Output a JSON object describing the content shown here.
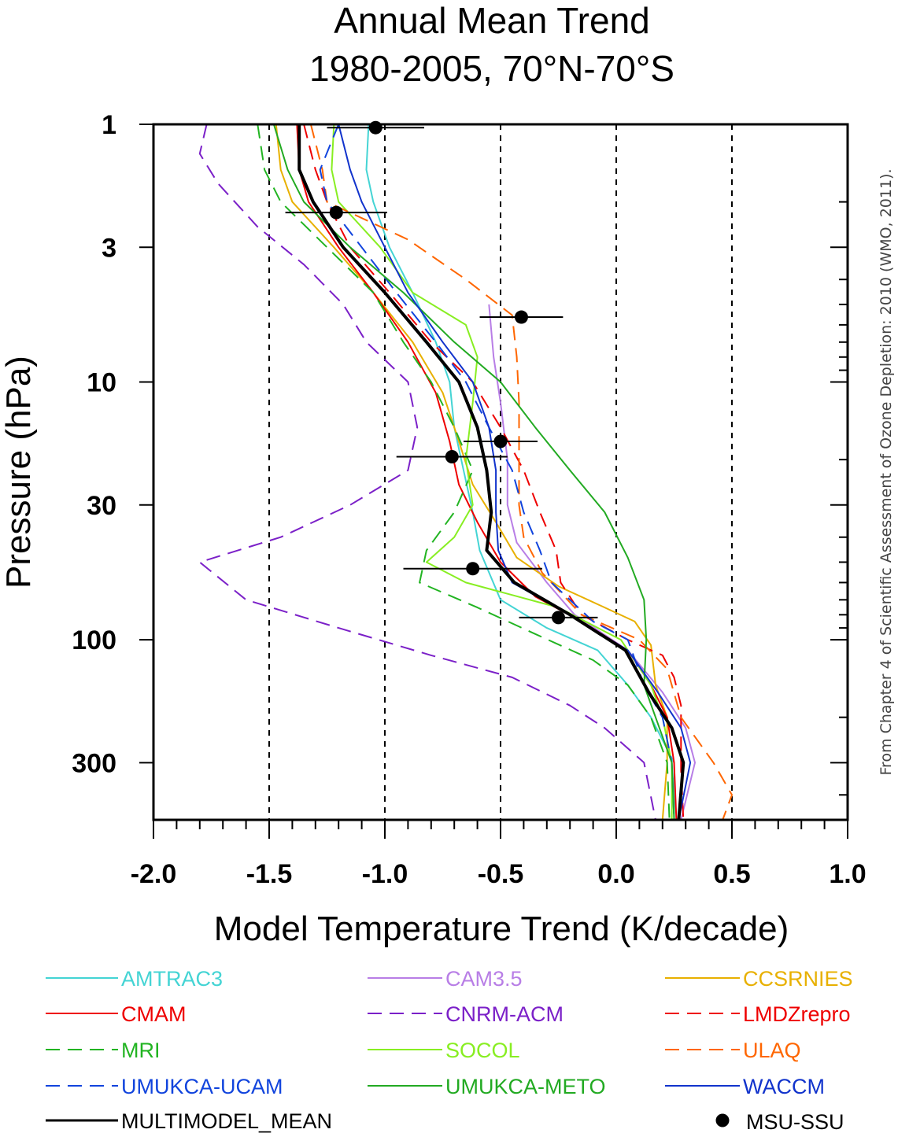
{
  "chart_data": {
    "type": "line",
    "title_lines": [
      "Annual Mean Trend",
      "1980-2005, 70°N-70°S"
    ],
    "xlabel": "Model Temperature Trend (K/decade)",
    "ylabel": "Pressure (hPa)",
    "xlim": [
      -2.0,
      1.0
    ],
    "ylim": [
      1,
      500
    ],
    "y_scale": "log",
    "y_inverted": true,
    "x_ticks": [
      "-2.0",
      "-1.5",
      "-1.0",
      "-0.5",
      "0.0",
      "0.5",
      "1.0"
    ],
    "x_tick_values": [
      -2.0,
      -1.5,
      -1.0,
      -0.5,
      0.0,
      0.5,
      1.0
    ],
    "y_ticks": [
      "1",
      "3",
      "10",
      "30",
      "100",
      "300"
    ],
    "y_tick_values": [
      1,
      3,
      10,
      30,
      100,
      300
    ],
    "vertical_dashed_gridlines": [
      -1.5,
      -1.0,
      -0.5,
      0.0,
      0.5
    ],
    "credit": "From Chapter 4 of Scientific Assessment of Ozone Depletion: 2010 (WMO, 2011).",
    "series": [
      {
        "name": "AMTRAC3",
        "color": "#44d4d4",
        "dash": "solid",
        "points": [
          [
            -1.07,
            1
          ],
          [
            -1.08,
            1.5
          ],
          [
            -1.05,
            2
          ],
          [
            -0.98,
            3
          ],
          [
            -0.88,
            4.5
          ],
          [
            -0.78,
            7
          ],
          [
            -0.72,
            10
          ],
          [
            -0.7,
            15
          ],
          [
            -0.66,
            22
          ],
          [
            -0.62,
            32
          ],
          [
            -0.59,
            45
          ],
          [
            -0.5,
            70
          ],
          [
            -0.3,
            90
          ],
          [
            -0.08,
            110
          ],
          [
            0.05,
            150
          ],
          [
            0.15,
            200
          ],
          [
            0.25,
            300
          ],
          [
            0.25,
            500
          ]
        ]
      },
      {
        "name": "CAM3.5",
        "color": "#b87ee6",
        "dash": "solid",
        "points": [
          [
            -0.55,
            5
          ],
          [
            -0.53,
            8
          ],
          [
            -0.5,
            12
          ],
          [
            -0.47,
            20
          ],
          [
            -0.47,
            30
          ],
          [
            -0.43,
            42
          ],
          [
            -0.3,
            60
          ],
          [
            -0.18,
            80
          ],
          [
            0.05,
            110
          ],
          [
            0.2,
            160
          ],
          [
            0.3,
            220
          ],
          [
            0.34,
            300
          ],
          [
            0.28,
            500
          ]
        ]
      },
      {
        "name": "CCSRNIES",
        "color": "#e8b000",
        "dash": "solid",
        "points": [
          [
            -1.47,
            1
          ],
          [
            -1.45,
            1.5
          ],
          [
            -1.4,
            2
          ],
          [
            -1.22,
            3
          ],
          [
            -1.05,
            4.5
          ],
          [
            -0.88,
            7
          ],
          [
            -0.75,
            11
          ],
          [
            -0.68,
            17
          ],
          [
            -0.62,
            25
          ],
          [
            -0.52,
            35
          ],
          [
            -0.43,
            48
          ],
          [
            -0.25,
            62
          ],
          [
            -0.05,
            75
          ],
          [
            0.08,
            85
          ],
          [
            0.15,
            105
          ],
          [
            0.17,
            150
          ],
          [
            0.22,
            200
          ],
          [
            0.22,
            300
          ],
          [
            0.2,
            500
          ]
        ]
      },
      {
        "name": "CMAM",
        "color": "#ee0000",
        "dash": "solid",
        "points": [
          [
            -1.38,
            1
          ],
          [
            -1.37,
            1.5
          ],
          [
            -1.33,
            2
          ],
          [
            -1.2,
            3
          ],
          [
            -1.05,
            4.5
          ],
          [
            -0.9,
            7
          ],
          [
            -0.78,
            11
          ],
          [
            -0.72,
            17
          ],
          [
            -0.68,
            25
          ],
          [
            -0.6,
            35
          ],
          [
            -0.5,
            50
          ],
          [
            -0.35,
            68
          ],
          [
            -0.15,
            85
          ],
          [
            0.05,
            110
          ],
          [
            0.15,
            150
          ],
          [
            0.22,
            200
          ],
          [
            0.25,
            300
          ],
          [
            0.26,
            500
          ]
        ]
      },
      {
        "name": "CNRM-ACM",
        "color": "#7b20c8",
        "dash": "dashed",
        "points": [
          [
            -1.77,
            1
          ],
          [
            -1.8,
            1.3
          ],
          [
            -1.72,
            1.7
          ],
          [
            -1.55,
            2.5
          ],
          [
            -1.35,
            3.5
          ],
          [
            -1.18,
            5
          ],
          [
            -1.08,
            7
          ],
          [
            -0.9,
            10
          ],
          [
            -0.86,
            15
          ],
          [
            -0.9,
            22
          ],
          [
            -1.15,
            30
          ],
          [
            -1.45,
            40
          ],
          [
            -1.8,
            50
          ],
          [
            -1.6,
            70
          ],
          [
            -1.2,
            90
          ],
          [
            -0.8,
            115
          ],
          [
            -0.45,
            140
          ],
          [
            -0.2,
            180
          ],
          [
            -0.05,
            220
          ],
          [
            0.12,
            300
          ],
          [
            0.17,
            500
          ]
        ]
      },
      {
        "name": "LMDZrepro",
        "color": "#ee0000",
        "dash": "dashed",
        "points": [
          [
            -1.35,
            1
          ],
          [
            -1.3,
            1.5
          ],
          [
            -1.25,
            2
          ],
          [
            -1.15,
            3
          ],
          [
            -0.98,
            4.5
          ],
          [
            -0.8,
            7
          ],
          [
            -0.62,
            10
          ],
          [
            -0.5,
            15
          ],
          [
            -0.4,
            22
          ],
          [
            -0.33,
            32
          ],
          [
            -0.26,
            45
          ],
          [
            -0.24,
            60
          ],
          [
            -0.15,
            80
          ],
          [
            0.05,
            100
          ],
          [
            0.2,
            115
          ],
          [
            0.25,
            140
          ],
          [
            0.28,
            180
          ],
          [
            0.28,
            250
          ],
          [
            0.28,
            320
          ],
          [
            0.29,
            500
          ]
        ]
      },
      {
        "name": "MRI",
        "color": "#22b422",
        "dash": "dashed",
        "points": [
          [
            -1.55,
            1
          ],
          [
            -1.52,
            1.5
          ],
          [
            -1.45,
            2
          ],
          [
            -1.25,
            3
          ],
          [
            -1.05,
            4.5
          ],
          [
            -0.92,
            7
          ],
          [
            -0.8,
            10
          ],
          [
            -0.7,
            15
          ],
          [
            -0.62,
            22
          ],
          [
            -0.7,
            32
          ],
          [
            -0.82,
            45
          ],
          [
            -0.85,
            60
          ],
          [
            -0.6,
            75
          ],
          [
            -0.35,
            95
          ],
          [
            -0.1,
            120
          ],
          [
            0.05,
            150
          ],
          [
            0.15,
            200
          ],
          [
            0.22,
            300
          ],
          [
            0.23,
            500
          ]
        ]
      },
      {
        "name": "SOCOL",
        "color": "#88ee22",
        "dash": "solid",
        "points": [
          [
            -1.22,
            1
          ],
          [
            -1.23,
            1.5
          ],
          [
            -1.2,
            2
          ],
          [
            -1.02,
            3
          ],
          [
            -0.88,
            4.5
          ],
          [
            -0.65,
            6
          ],
          [
            -0.6,
            8
          ],
          [
            -0.62,
            12
          ],
          [
            -0.65,
            20
          ],
          [
            -0.62,
            30
          ],
          [
            -0.7,
            40
          ],
          [
            -0.82,
            50
          ],
          [
            -0.65,
            60
          ],
          [
            -0.25,
            75
          ],
          [
            0.02,
            100
          ],
          [
            0.15,
            150
          ],
          [
            0.2,
            200
          ],
          [
            0.24,
            300
          ],
          [
            0.24,
            500
          ]
        ]
      },
      {
        "name": "ULAQ",
        "color": "#ff6600",
        "dash": "dashed",
        "points": [
          [
            -1.32,
            1
          ],
          [
            -1.27,
            1.5
          ],
          [
            -1.25,
            2
          ],
          [
            -0.9,
            2.8
          ],
          [
            -0.65,
            4
          ],
          [
            -0.45,
            5.5
          ],
          [
            -0.43,
            8
          ],
          [
            -0.42,
            12
          ],
          [
            -0.42,
            20
          ],
          [
            -0.42,
            30
          ],
          [
            -0.4,
            40
          ],
          [
            -0.32,
            55
          ],
          [
            -0.15,
            80
          ],
          [
            0.1,
            100
          ],
          [
            0.22,
            130
          ],
          [
            0.28,
            200
          ],
          [
            0.42,
            300
          ],
          [
            0.5,
            400
          ],
          [
            0.46,
            500
          ]
        ]
      },
      {
        "name": "UMUKCA-UCAM",
        "color": "#1144dd",
        "dash": "dashed",
        "points": [
          [
            -1.2,
            1
          ],
          [
            -1.28,
            1.5
          ],
          [
            -1.25,
            2
          ],
          [
            -1.1,
            3
          ],
          [
            -0.95,
            4.5
          ],
          [
            -0.78,
            7
          ],
          [
            -0.65,
            10
          ],
          [
            -0.55,
            15
          ],
          [
            -0.45,
            22
          ],
          [
            -0.4,
            32
          ],
          [
            -0.33,
            45
          ],
          [
            -0.28,
            60
          ],
          [
            -0.1,
            85
          ],
          [
            0.05,
            100
          ],
          [
            0.12,
            150
          ],
          [
            0.2,
            200
          ],
          [
            0.24,
            300
          ],
          [
            0.25,
            500
          ]
        ]
      },
      {
        "name": "UMUKCA-METO",
        "color": "#22aa22",
        "dash": "solid",
        "points": [
          [
            -1.48,
            1
          ],
          [
            -1.42,
            1.5
          ],
          [
            -1.35,
            2
          ],
          [
            -1.15,
            3
          ],
          [
            -0.92,
            4.5
          ],
          [
            -0.7,
            7
          ],
          [
            -0.5,
            10
          ],
          [
            -0.35,
            15
          ],
          [
            -0.2,
            22
          ],
          [
            -0.05,
            32
          ],
          [
            0.05,
            48
          ],
          [
            0.12,
            70
          ],
          [
            0.13,
            100
          ],
          [
            0.12,
            150
          ],
          [
            0.17,
            200
          ],
          [
            0.24,
            300
          ],
          [
            0.25,
            500
          ]
        ]
      },
      {
        "name": "WACCM",
        "color": "#1133cc",
        "dash": "solid",
        "points": [
          [
            -1.2,
            1
          ],
          [
            -1.15,
            1.5
          ],
          [
            -1.1,
            2
          ],
          [
            -1.0,
            3
          ],
          [
            -0.9,
            4.5
          ],
          [
            -0.75,
            7
          ],
          [
            -0.62,
            10
          ],
          [
            -0.55,
            15
          ],
          [
            -0.52,
            22
          ],
          [
            -0.52,
            32
          ],
          [
            -0.51,
            45
          ],
          [
            -0.45,
            60
          ],
          [
            -0.2,
            80
          ],
          [
            0.05,
            110
          ],
          [
            0.18,
            160
          ],
          [
            0.28,
            220
          ],
          [
            0.32,
            300
          ],
          [
            0.27,
            500
          ]
        ]
      },
      {
        "name": "MULTIMODEL_MEAN",
        "color": "#000000",
        "dash": "solid",
        "width": 4,
        "points": [
          [
            -1.37,
            1
          ],
          [
            -1.37,
            1.5
          ],
          [
            -1.31,
            2
          ],
          [
            -1.18,
            3
          ],
          [
            -1.0,
            4.5
          ],
          [
            -0.82,
            7
          ],
          [
            -0.68,
            10
          ],
          [
            -0.6,
            15
          ],
          [
            -0.56,
            22
          ],
          [
            -0.54,
            32
          ],
          [
            -0.56,
            45
          ],
          [
            -0.44,
            60
          ],
          [
            -0.2,
            80
          ],
          [
            0.04,
            110
          ],
          [
            0.14,
            160
          ],
          [
            0.24,
            220
          ],
          [
            0.29,
            300
          ],
          [
            0.27,
            500
          ]
        ]
      }
    ],
    "msu_ssu": {
      "name": "MSU-SSU",
      "points": [
        {
          "x": -1.04,
          "p": 1.03,
          "xmin": -1.25,
          "xmax": -0.83
        },
        {
          "x": -1.21,
          "p": 2.2,
          "xmin": -1.43,
          "xmax": -0.99
        },
        {
          "x": -0.41,
          "p": 5.6,
          "xmin": -0.59,
          "xmax": -0.23
        },
        {
          "x": -0.5,
          "p": 17,
          "xmin": -0.66,
          "xmax": -0.34
        },
        {
          "x": -0.71,
          "p": 19.5,
          "xmin": -0.95,
          "xmax": -0.47
        },
        {
          "x": -0.62,
          "p": 53,
          "xmin": -0.92,
          "xmax": -0.32
        },
        {
          "x": -0.25,
          "p": 82,
          "xmin": -0.42,
          "xmax": -0.08
        }
      ]
    },
    "legend_order": [
      "AMTRAC3",
      "CAM3.5",
      "CCSRNIES",
      "CMAM",
      "CNRM-ACM",
      "LMDZrepro",
      "MRI",
      "SOCOL",
      "ULAQ",
      "UMUKCA-UCAM",
      "UMUKCA-METO",
      "WACCM",
      "MULTIMODEL_MEAN",
      "MSU-SSU"
    ]
  }
}
